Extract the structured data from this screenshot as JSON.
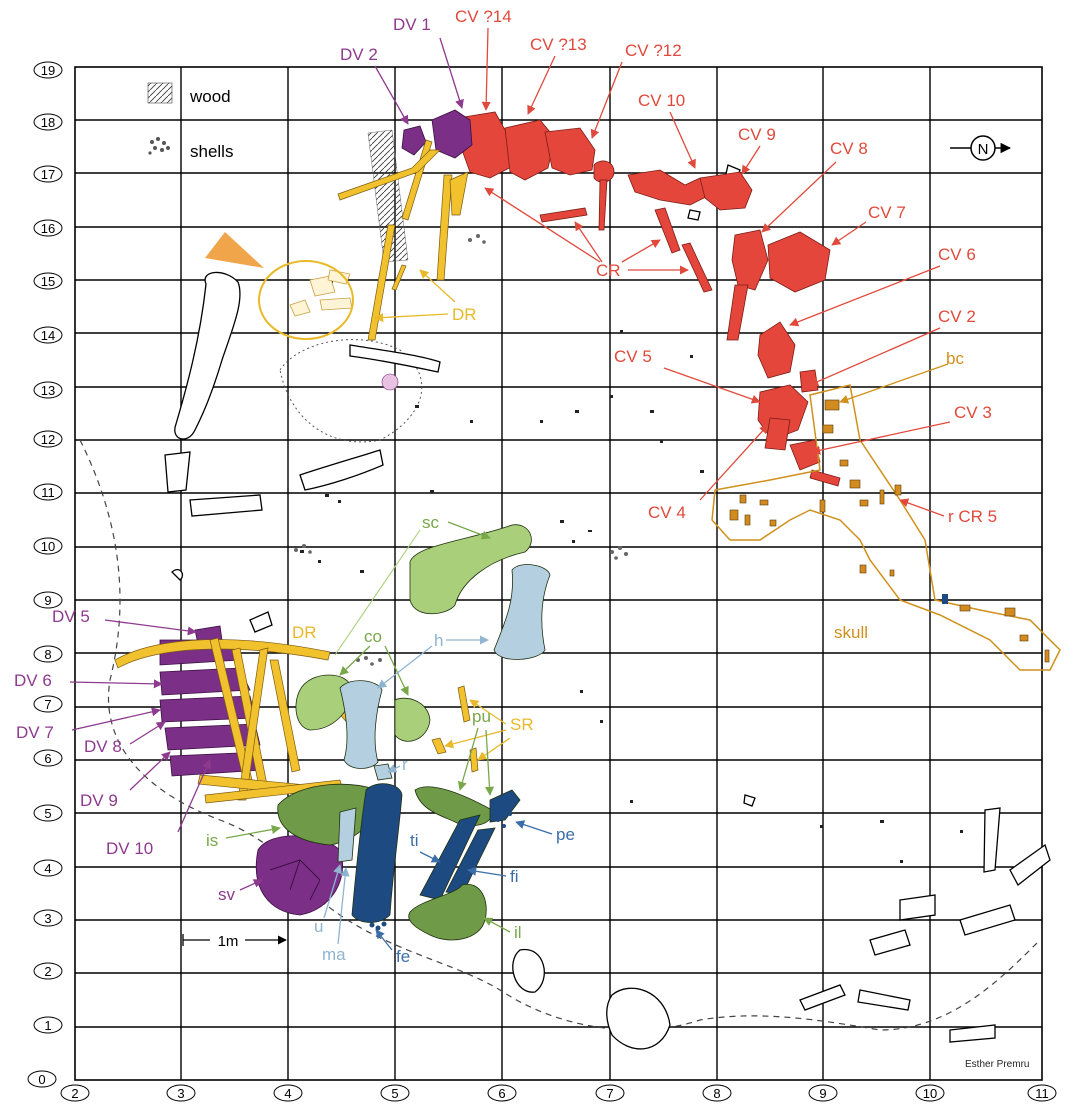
{
  "axis": {
    "y_ticks": [
      "19",
      "18",
      "17",
      "16",
      "15",
      "14",
      "13",
      "12",
      "11",
      "10",
      "9",
      "8",
      "7",
      "6",
      "5",
      "4",
      "3",
      "2",
      "1",
      "0"
    ],
    "x_ticks": [
      "2",
      "3",
      "4",
      "5",
      "6",
      "7",
      "8",
      "9",
      "10",
      "11"
    ]
  },
  "legend": {
    "wood": "wood",
    "shells": "shells"
  },
  "north": "N",
  "scale_bar": "1m",
  "credit": "Esther Premru",
  "labels": {
    "dv1": "DV 1",
    "dv2": "DV 2",
    "cv14": "CV ?14",
    "cv13": "CV ?13",
    "cv12": "CV ?12",
    "cv10": "CV 10",
    "cv9": "CV 9",
    "cv8": "CV 8",
    "cv7": "CV 7",
    "cv6": "CV 6",
    "cv2": "CV 2",
    "bc": "bc",
    "cv5": "CV 5",
    "cv3": "CV 3",
    "cv4": "CV 4",
    "rcr5": "r CR 5",
    "cr": "CR",
    "dr_top": "DR",
    "sc": "sc",
    "skull": "skull",
    "dv5": "DV 5",
    "dr_low": "DR",
    "co": "co",
    "h": "h",
    "dv6": "DV 6",
    "dv7": "DV 7",
    "dv8": "DV 8",
    "sr": "SR",
    "dv9": "DV 9",
    "pu": "pu",
    "r": "r",
    "pe": "pe",
    "is": "is",
    "dv10": "DV 10",
    "ti": "ti",
    "fi": "fi",
    "sv": "sv",
    "il": "il",
    "u": "u",
    "ma": "ma",
    "fe": "fe"
  },
  "colors": {
    "dorsal_vertebrae": "#7b2f86",
    "cervical_vertebrae": "#e5463c",
    "ribs": "#f2c12e",
    "skull": "#d18b1e",
    "light_green": "#a9cf7a",
    "dark_green": "#6f9a48",
    "light_blue": "#b3cfe0",
    "dark_blue": "#1e4a82",
    "label_red": "#e04a3c",
    "label_purple": "#8e3a8e",
    "label_yellow": "#e9b92a",
    "label_green": "#78a84a",
    "label_blue": "#3b6ea8",
    "label_lightblue": "#8fb4d0",
    "label_orange": "#d0901c",
    "arrow_cone": "#f0a54a"
  }
}
